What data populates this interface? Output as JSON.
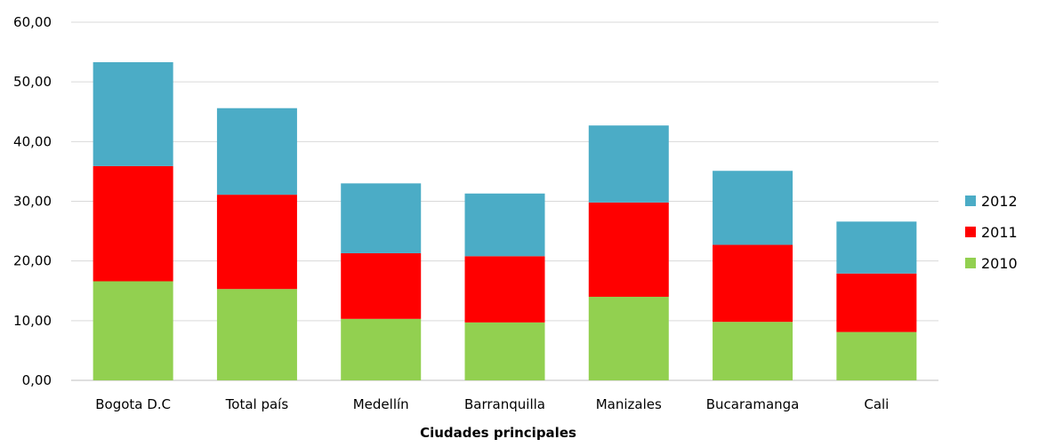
{
  "chart_data": {
    "type": "bar",
    "stacked": true,
    "title": "",
    "xlabel": "Ciudades principales",
    "ylabel": "",
    "ylim": [
      0,
      60
    ],
    "yticks": [
      "0,00",
      "10,00",
      "20,00",
      "30,00",
      "40,00",
      "50,00",
      "60,00"
    ],
    "grid": true,
    "legend_position": "right",
    "categories": [
      "Bogota D.C",
      "Total país",
      "Medellín",
      "Barranquilla",
      "Manizales",
      "Bucaramanga",
      "Cali"
    ],
    "series": [
      {
        "name": "2010",
        "color": "#92d050",
        "values": [
          16.6,
          15.3,
          10.3,
          9.7,
          14.0,
          9.8,
          8.1
        ]
      },
      {
        "name": "2011",
        "color": "#ff0000",
        "values": [
          19.3,
          15.8,
          11.0,
          11.1,
          15.8,
          12.9,
          9.8
        ]
      },
      {
        "name": "2012",
        "color": "#4bacc6",
        "values": [
          17.4,
          14.5,
          11.7,
          10.5,
          12.9,
          12.4,
          8.7
        ]
      }
    ],
    "legend_order": [
      "2012",
      "2011",
      "2010"
    ]
  }
}
